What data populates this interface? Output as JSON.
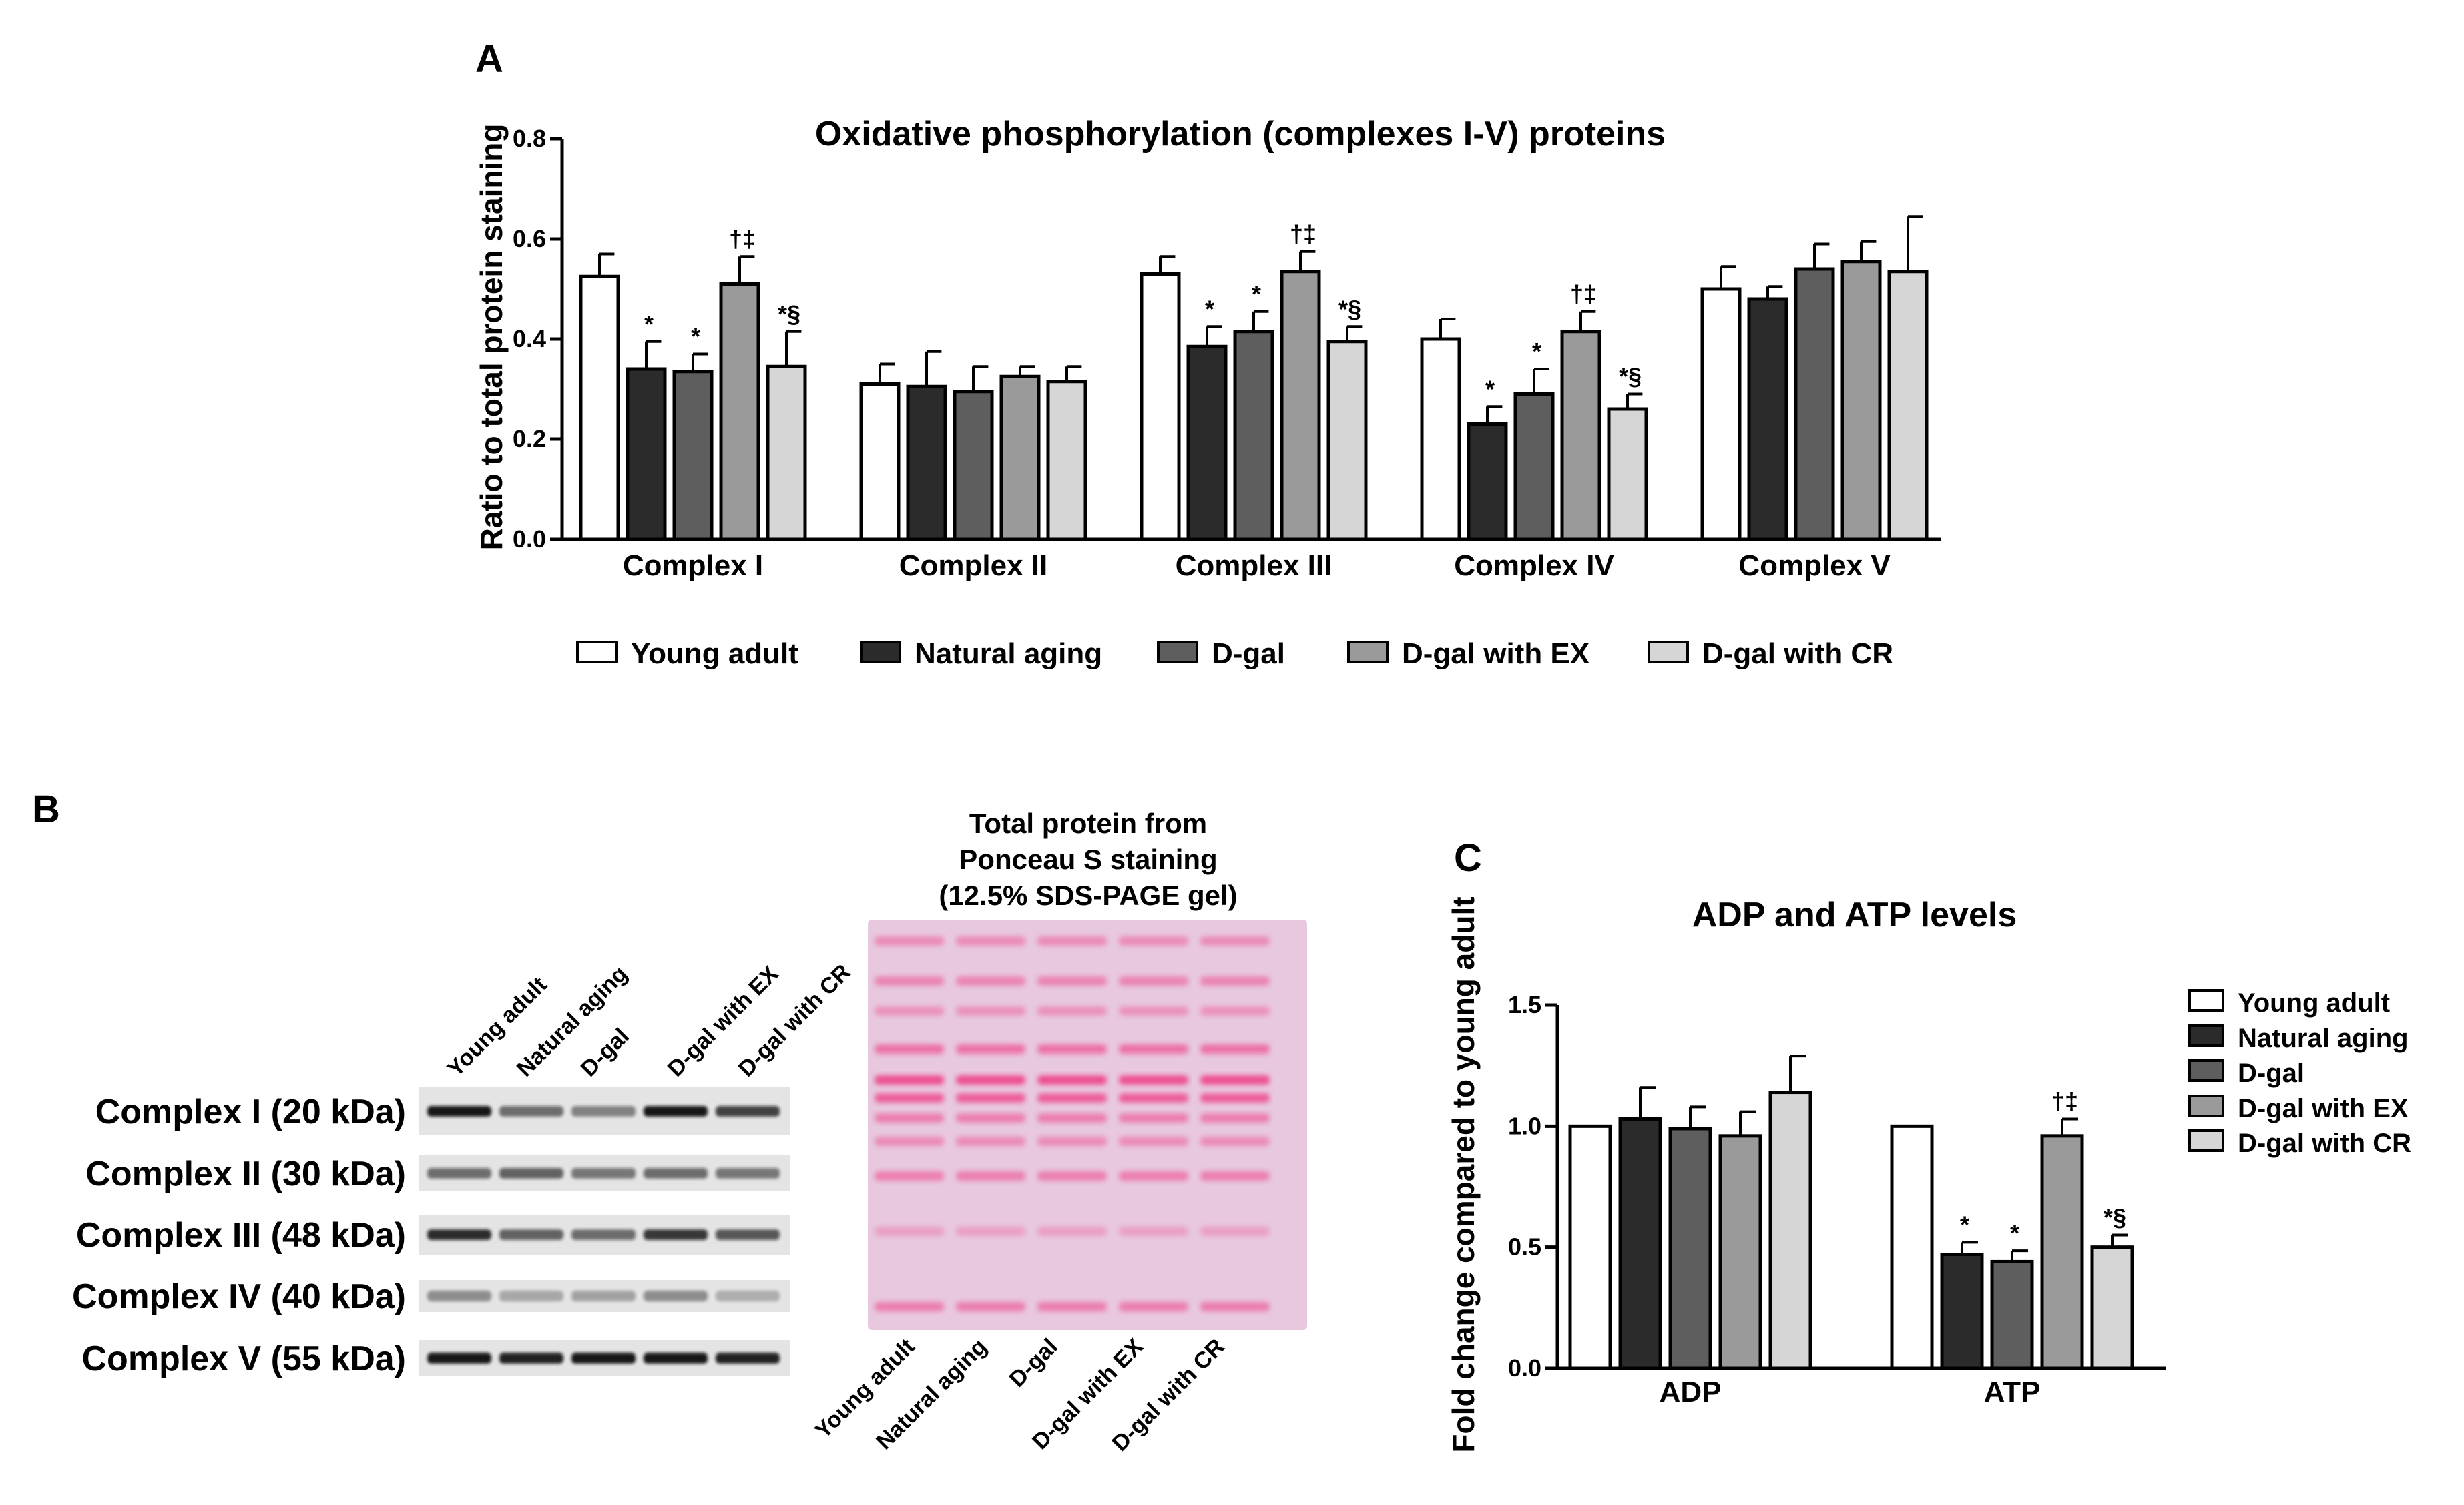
{
  "colors": {
    "young_adult": "#ffffff",
    "natural_aging": "#2b2b2b",
    "d_gal": "#5e5e5e",
    "d_gal_ex": "#9a9a9a",
    "d_gal_cr": "#d6d6d6",
    "ponceau_bg": "#e8c8dc",
    "ponceau_band": "#ee3f86"
  },
  "panels": {
    "a": "A",
    "b": "B",
    "c": "C"
  },
  "chart_data": [
    {
      "id": "A",
      "type": "bar",
      "title": "Oxidative phosphorylation (complexes I-V) proteins",
      "xlabel": "",
      "ylabel": "Ratio to total protein staining",
      "ylim": [
        0,
        0.8
      ],
      "yticks": [
        "0.0",
        "0.2",
        "0.4",
        "0.6",
        "0.8"
      ],
      "categories": [
        "Complex I",
        "Complex II",
        "Complex III",
        "Complex IV",
        "Complex V"
      ],
      "series": [
        {
          "name": "Young adult",
          "values": [
            0.525,
            0.31,
            0.53,
            0.4,
            0.5
          ],
          "errors": [
            0.045,
            0.04,
            0.035,
            0.04,
            0.045
          ],
          "sig": [
            "",
            "",
            "",
            "",
            ""
          ]
        },
        {
          "name": "Natural aging",
          "values": [
            0.34,
            0.305,
            0.385,
            0.23,
            0.48
          ],
          "errors": [
            0.055,
            0.07,
            0.04,
            0.035,
            0.025
          ],
          "sig": [
            "*",
            "",
            "*",
            "*",
            ""
          ]
        },
        {
          "name": "D-gal",
          "values": [
            0.335,
            0.295,
            0.415,
            0.29,
            0.54
          ],
          "errors": [
            0.035,
            0.05,
            0.04,
            0.05,
            0.05
          ],
          "sig": [
            "*",
            "",
            "*",
            "*",
            ""
          ]
        },
        {
          "name": "D-gal with EX",
          "values": [
            0.51,
            0.325,
            0.535,
            0.415,
            0.555
          ],
          "errors": [
            0.055,
            0.02,
            0.04,
            0.04,
            0.04
          ],
          "sig": [
            "†‡",
            "",
            "†‡",
            "†‡",
            ""
          ]
        },
        {
          "name": "D-gal with CR",
          "values": [
            0.345,
            0.315,
            0.395,
            0.26,
            0.535
          ],
          "errors": [
            0.07,
            0.03,
            0.03,
            0.03,
            0.11
          ],
          "sig": [
            "*§",
            "",
            "*§",
            "*§",
            ""
          ]
        }
      ],
      "legend": [
        "Young adult",
        "Natural aging",
        "D-gal",
        "D-gal with EX",
        "D-gal with CR"
      ],
      "legend_position": "bottom"
    },
    {
      "id": "C",
      "type": "bar",
      "title": "ADP and ATP levels",
      "xlabel": "",
      "ylabel": "Fold change compared to young adult",
      "ylim": [
        0,
        1.5
      ],
      "yticks": [
        "0.0",
        "0.5",
        "1.0",
        "1.5"
      ],
      "categories": [
        "ADP",
        "ATP"
      ],
      "series": [
        {
          "name": "Young adult",
          "values": [
            1.0,
            1.0
          ],
          "errors": [
            0,
            0
          ],
          "sig": [
            "",
            ""
          ]
        },
        {
          "name": "Natural aging",
          "values": [
            1.03,
            0.47
          ],
          "errors": [
            0.13,
            0.05
          ],
          "sig": [
            "",
            "*"
          ]
        },
        {
          "name": "D-gal",
          "values": [
            0.99,
            0.44
          ],
          "errors": [
            0.09,
            0.045
          ],
          "sig": [
            "",
            "*"
          ]
        },
        {
          "name": "D-gal with EX",
          "values": [
            0.96,
            0.96
          ],
          "errors": [
            0.1,
            0.07
          ],
          "sig": [
            "",
            "†‡"
          ]
        },
        {
          "name": "D-gal with CR",
          "values": [
            1.14,
            0.5
          ],
          "errors": [
            0.15,
            0.05
          ],
          "sig": [
            "",
            "*§"
          ]
        }
      ],
      "legend": [
        "Young adult",
        "Natural aging",
        "D-gal",
        "D-gal with EX",
        "D-gal with CR"
      ],
      "legend_position": "right"
    }
  ],
  "blot": {
    "lanes": [
      "Young adult",
      "Natural aging",
      "D-gal",
      "D-gal with EX",
      "D-gal with CR"
    ],
    "rows": [
      "Complex I (20 kDa)",
      "Complex II (30 kDa)",
      "Complex III (48 kDa)",
      "Complex IV (40 kDa)",
      "Complex V (55 kDa)"
    ],
    "ponceau_title": [
      "Total protein from",
      "Ponceau S staining",
      "(12.5% SDS-PAGE gel)"
    ],
    "ponceau_lanes": [
      "Young adult",
      "Natural aging",
      "D-gal",
      "D-gal with EX",
      "D-gal with CR"
    ]
  }
}
